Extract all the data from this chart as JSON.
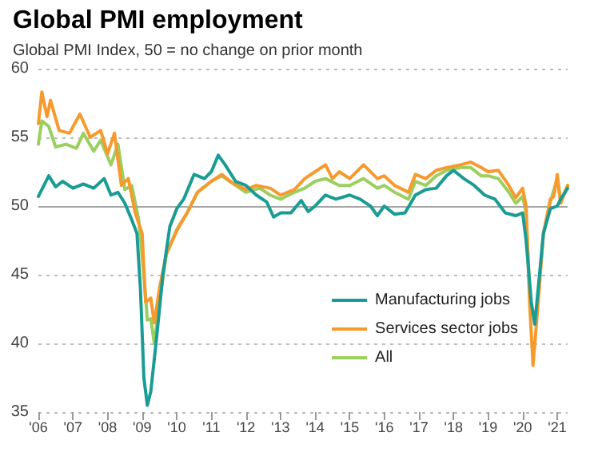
{
  "chart_data": {
    "type": "line",
    "title": "Global PMI employment",
    "subtitle": "Global PMI Index, 50 = no change on prior month",
    "xlim": [
      2006,
      2021.3
    ],
    "xticks": [
      {
        "value": 2006,
        "label": "'06"
      },
      {
        "value": 2007,
        "label": "'07"
      },
      {
        "value": 2008,
        "label": "'08"
      },
      {
        "value": 2009,
        "label": "'09"
      },
      {
        "value": 2010,
        "label": "'10"
      },
      {
        "value": 2011,
        "label": "'11"
      },
      {
        "value": 2012,
        "label": "'12"
      },
      {
        "value": 2013,
        "label": "'13"
      },
      {
        "value": 2014,
        "label": "'14"
      },
      {
        "value": 2015,
        "label": "'15"
      },
      {
        "value": 2016,
        "label": "'16"
      },
      {
        "value": 2017,
        "label": "'17"
      },
      {
        "value": 2018,
        "label": "'18"
      },
      {
        "value": 2019,
        "label": "'19"
      },
      {
        "value": 2020,
        "label": "'20"
      },
      {
        "value": 2021,
        "label": "'21"
      }
    ],
    "ylim": [
      35,
      60
    ],
    "yticks": [
      35,
      40,
      45,
      50,
      55,
      60
    ],
    "grid": "y",
    "legend": "bottom right",
    "marker": "none",
    "line_style": "solid",
    "ref_lines": [
      {
        "axis": "y",
        "value": 50,
        "color": "#a6a6a6"
      }
    ],
    "series": [
      {
        "name": "Manufacturing jobs",
        "color": "#1a9c94",
        "x": [
          2006.0,
          2006.1,
          2006.3,
          2006.5,
          2006.7,
          2007.0,
          2007.3,
          2007.6,
          2007.9,
          2008.1,
          2008.3,
          2008.5,
          2008.7,
          2008.85,
          2008.95,
          2009.05,
          2009.15,
          2009.25,
          2009.4,
          2009.6,
          2009.8,
          2010.0,
          2010.2,
          2010.5,
          2010.8,
          2011.0,
          2011.2,
          2011.4,
          2011.7,
          2012.0,
          2012.3,
          2012.6,
          2012.8,
          2013.0,
          2013.3,
          2013.6,
          2013.8,
          2014.0,
          2014.3,
          2014.6,
          2015.0,
          2015.3,
          2015.6,
          2015.8,
          2016.0,
          2016.3,
          2016.6,
          2016.9,
          2017.2,
          2017.5,
          2017.8,
          2018.0,
          2018.3,
          2018.6,
          2018.9,
          2019.2,
          2019.5,
          2019.8,
          2020.0,
          2020.1,
          2020.25,
          2020.35,
          2020.45,
          2020.6,
          2020.8,
          2021.0,
          2021.1,
          2021.3
        ],
        "values": [
          50.7,
          51.2,
          52.2,
          51.4,
          51.8,
          51.3,
          51.6,
          51.3,
          52.0,
          50.8,
          51.0,
          50.2,
          49.0,
          48.0,
          44,
          37.5,
          35.5,
          36.5,
          40,
          45,
          48.5,
          49.8,
          50.5,
          52.3,
          52.0,
          52.5,
          53.7,
          53.0,
          51.8,
          51.5,
          50.8,
          50.3,
          49.2,
          49.5,
          49.5,
          50.4,
          49.6,
          50.0,
          50.8,
          50.5,
          50.8,
          50.5,
          50.0,
          49.3,
          50.0,
          49.4,
          49.5,
          50.8,
          51.2,
          51.3,
          52.2,
          52.6,
          52.0,
          51.5,
          50.8,
          50.5,
          49.5,
          49.3,
          49.5,
          47.5,
          43,
          41.4,
          44,
          48,
          49.8,
          50.0,
          50.5,
          51.3
        ]
      },
      {
        "name": "Services sector jobs",
        "color": "#f79a2e",
        "x": [
          2006.0,
          2006.1,
          2006.25,
          2006.35,
          2006.6,
          2006.9,
          2007.2,
          2007.5,
          2007.8,
          2008.0,
          2008.2,
          2008.4,
          2008.6,
          2008.8,
          2009.0,
          2009.1,
          2009.25,
          2009.35,
          2009.5,
          2009.7,
          2010.0,
          2010.3,
          2010.6,
          2011.0,
          2011.3,
          2011.6,
          2012.0,
          2012.3,
          2012.7,
          2013.0,
          2013.4,
          2013.7,
          2014.0,
          2014.3,
          2014.5,
          2014.7,
          2015.0,
          2015.4,
          2015.8,
          2016.0,
          2016.3,
          2016.7,
          2016.9,
          2017.2,
          2017.5,
          2017.8,
          2018.2,
          2018.5,
          2018.8,
          2019.0,
          2019.3,
          2019.6,
          2019.8,
          2020.0,
          2020.1,
          2020.2,
          2020.3,
          2020.45,
          2020.6,
          2020.8,
          2020.9,
          2021.0,
          2021.1,
          2021.3
        ],
        "values": [
          56,
          58.3,
          56.5,
          57.7,
          55.5,
          55.3,
          56.7,
          55.0,
          55.5,
          53.8,
          55.3,
          51.5,
          52.0,
          49.5,
          48,
          43,
          43.3,
          41.5,
          44,
          46.5,
          48.2,
          49.5,
          51.0,
          51.8,
          52.3,
          51.7,
          51.2,
          51.5,
          51.3,
          50.8,
          51.2,
          52.0,
          52.5,
          53.0,
          52.0,
          52.5,
          52.0,
          53.0,
          52.0,
          52.2,
          51.5,
          51.0,
          52.3,
          52.0,
          52.6,
          52.8,
          53.0,
          53.2,
          52.8,
          52.5,
          52.6,
          51.5,
          50.6,
          51.3,
          50,
          43,
          38.4,
          43,
          48,
          50.5,
          50.7,
          52.3,
          50.2,
          51.5
        ]
      },
      {
        "name": "All",
        "color": "#9bcf5e",
        "x": [
          2006.0,
          2006.1,
          2006.3,
          2006.5,
          2006.8,
          2007.1,
          2007.3,
          2007.6,
          2007.8,
          2008.1,
          2008.3,
          2008.5,
          2008.7,
          2008.9,
          2009.05,
          2009.15,
          2009.25,
          2009.35,
          2009.5,
          2009.7,
          2010.0,
          2010.3,
          2010.6,
          2011.0,
          2011.3,
          2011.7,
          2012.0,
          2012.4,
          2012.7,
          2013.0,
          2013.4,
          2013.7,
          2014.0,
          2014.3,
          2014.7,
          2015.0,
          2015.4,
          2015.8,
          2016.0,
          2016.3,
          2016.7,
          2016.9,
          2017.2,
          2017.5,
          2017.8,
          2018.2,
          2018.5,
          2018.8,
          2019.0,
          2019.3,
          2019.6,
          2019.8,
          2020.0,
          2020.1,
          2020.2,
          2020.3,
          2020.45,
          2020.6,
          2020.8,
          2021.0,
          2021.1,
          2021.3
        ],
        "values": [
          54.5,
          56.2,
          55.8,
          54.3,
          54.5,
          54.2,
          55.3,
          54.0,
          54.8,
          53.0,
          54.5,
          51.2,
          51.5,
          49,
          45,
          41.7,
          41.8,
          40.0,
          43,
          46.5,
          48.3,
          49.5,
          51.0,
          51.8,
          52.2,
          51.5,
          51.0,
          51.3,
          50.8,
          50.5,
          51.0,
          51.3,
          51.8,
          52.0,
          51.5,
          51.5,
          52.0,
          51.3,
          51.5,
          51.0,
          50.5,
          51.8,
          51.5,
          52.2,
          52.6,
          52.8,
          52.8,
          52.2,
          52.2,
          52.0,
          51.0,
          50.2,
          50.7,
          49.5,
          44,
          null,
          43.5,
          48,
          50.3,
          52.0,
          50.3,
          51.5
        ]
      }
    ]
  }
}
